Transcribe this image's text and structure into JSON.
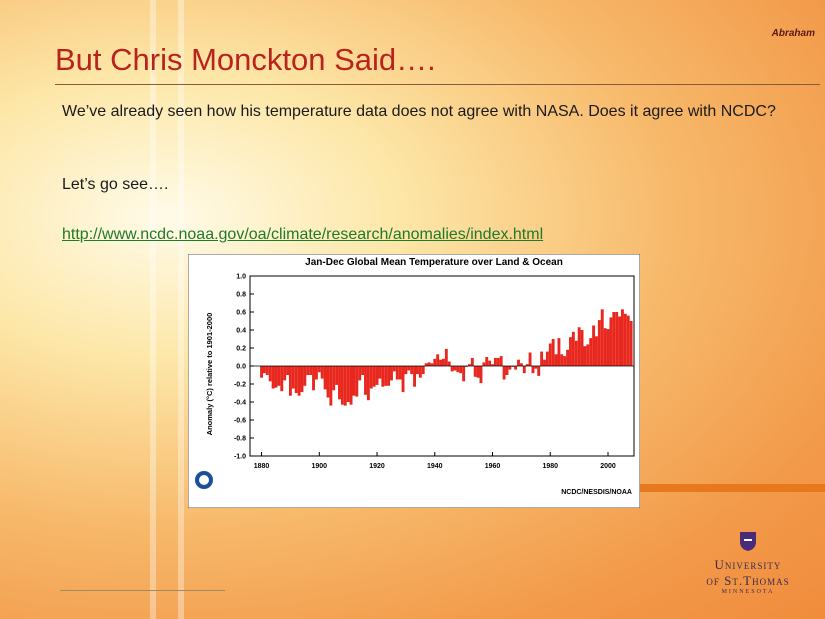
{
  "slide": {
    "author": "Abraham",
    "title": "But Chris Monckton Said….",
    "paragraph": "We’ve already seen how his temperature data does not agree with NASA.  Does it agree with NCDC?",
    "prompt": "Let’s go see….",
    "link": "http://www.ncdc.noaa.gov/oa/climate/research/anomalies/index.html",
    "logo": {
      "line1": "University",
      "line2": "of St.Thomas",
      "line3": "MINNESOTA"
    }
  },
  "chart_data": {
    "type": "bar",
    "title": "Jan-Dec Global Mean Temperature over Land & Ocean",
    "ylabel": "Anomaly (°C) relative to 1901-2000",
    "credit": "NCDC/NESDIS/NOAA",
    "color": "#e8281e",
    "x": [
      1880,
      1881,
      1882,
      1883,
      1884,
      1885,
      1886,
      1887,
      1888,
      1889,
      1890,
      1891,
      1892,
      1893,
      1894,
      1895,
      1896,
      1897,
      1898,
      1899,
      1900,
      1901,
      1902,
      1903,
      1904,
      1905,
      1906,
      1907,
      1908,
      1909,
      1910,
      1911,
      1912,
      1913,
      1914,
      1915,
      1916,
      1917,
      1918,
      1919,
      1920,
      1921,
      1922,
      1923,
      1924,
      1925,
      1926,
      1927,
      1928,
      1929,
      1930,
      1931,
      1932,
      1933,
      1934,
      1935,
      1936,
      1937,
      1938,
      1939,
      1940,
      1941,
      1942,
      1943,
      1944,
      1945,
      1946,
      1947,
      1948,
      1949,
      1950,
      1951,
      1952,
      1953,
      1954,
      1955,
      1956,
      1957,
      1958,
      1959,
      1960,
      1961,
      1962,
      1963,
      1964,
      1965,
      1966,
      1967,
      1968,
      1969,
      1970,
      1971,
      1972,
      1973,
      1974,
      1975,
      1976,
      1977,
      1978,
      1979,
      1980,
      1981,
      1982,
      1983,
      1984,
      1985,
      1986,
      1987,
      1988,
      1989,
      1990,
      1991,
      1992,
      1993,
      1994,
      1995,
      1996,
      1997,
      1998,
      1999,
      2000,
      2001,
      2002,
      2003,
      2004,
      2005,
      2006,
      2007,
      2008
    ],
    "values": [
      -0.13,
      -0.08,
      -0.1,
      -0.17,
      -0.25,
      -0.24,
      -0.22,
      -0.28,
      -0.16,
      -0.1,
      -0.33,
      -0.25,
      -0.3,
      -0.33,
      -0.29,
      -0.22,
      -0.1,
      -0.1,
      -0.27,
      -0.15,
      -0.07,
      -0.14,
      -0.26,
      -0.35,
      -0.44,
      -0.27,
      -0.21,
      -0.37,
      -0.43,
      -0.44,
      -0.4,
      -0.43,
      -0.33,
      -0.34,
      -0.16,
      -0.1,
      -0.32,
      -0.38,
      -0.25,
      -0.23,
      -0.21,
      -0.14,
      -0.23,
      -0.22,
      -0.22,
      -0.16,
      -0.06,
      -0.15,
      -0.15,
      -0.29,
      -0.09,
      -0.05,
      -0.09,
      -0.23,
      -0.09,
      -0.13,
      -0.09,
      0.03,
      0.04,
      0.03,
      0.08,
      0.13,
      0.07,
      0.08,
      0.19,
      0.05,
      -0.06,
      -0.05,
      -0.07,
      -0.08,
      -0.17,
      -0.01,
      0.02,
      0.09,
      -0.12,
      -0.13,
      -0.19,
      0.04,
      0.1,
      0.06,
      0.02,
      0.09,
      0.09,
      0.11,
      -0.15,
      -0.1,
      -0.04,
      -0.01,
      -0.04,
      0.07,
      0.03,
      -0.08,
      0.02,
      0.15,
      -0.08,
      -0.03,
      -0.11,
      0.16,
      0.07,
      0.16,
      0.25,
      0.3,
      0.13,
      0.31,
      0.13,
      0.11,
      0.18,
      0.32,
      0.38,
      0.28,
      0.43,
      0.4,
      0.22,
      0.24,
      0.31,
      0.45,
      0.33,
      0.51,
      0.63,
      0.42,
      0.41,
      0.54,
      0.6,
      0.6,
      0.55,
      0.63,
      0.58,
      0.56,
      0.5
    ],
    "xlim": [
      1876,
      2009
    ],
    "xticks": [
      1880,
      1900,
      1920,
      1940,
      1960,
      1980,
      2000
    ],
    "ylim": [
      -1,
      1
    ],
    "yticks": [
      {
        "value": 1,
        "label": "1.0"
      },
      0.8,
      0.6,
      0.4,
      0.2,
      {
        "value": 0,
        "label": "0.0"
      },
      -0.2,
      -0.4,
      -0.6,
      -0.8,
      {
        "value": -1,
        "label": "-1.0"
      }
    ]
  }
}
